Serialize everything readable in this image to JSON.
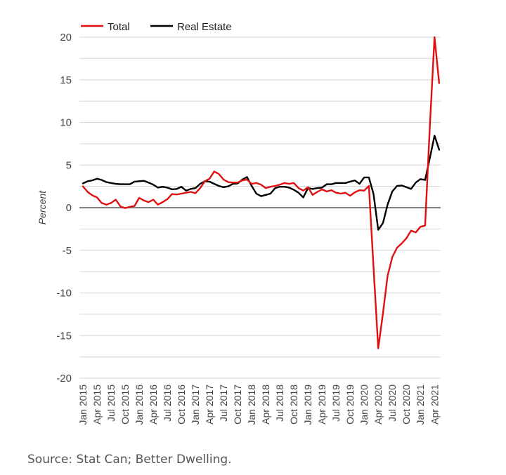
{
  "chart_data": {
    "type": "line",
    "title": "",
    "xlabel": "",
    "ylabel": "Percent",
    "ylim": [
      -20,
      20
    ],
    "y_ticks": [
      20,
      15,
      10,
      5,
      0,
      -5,
      -10,
      -15,
      -20
    ],
    "y_tick_labels": [
      "20",
      "15",
      "10",
      "5",
      "0",
      "-5",
      "-10",
      "-15",
      "-20"
    ],
    "minor_gridlines_every": 2.5,
    "grid": true,
    "legend_position": "top-left",
    "x": [
      "Jan 2015",
      "Feb 2015",
      "Mar 2015",
      "Apr 2015",
      "May 2015",
      "Jun 2015",
      "Jul 2015",
      "Aug 2015",
      "Sep 2015",
      "Oct 2015",
      "Nov 2015",
      "Dec 2015",
      "Jan 2016",
      "Feb 2016",
      "Mar 2016",
      "Apr 2016",
      "May 2016",
      "Jun 2016",
      "Jul 2016",
      "Aug 2016",
      "Sep 2016",
      "Oct 2016",
      "Nov 2016",
      "Dec 2016",
      "Jan 2017",
      "Feb 2017",
      "Mar 2017",
      "Apr 2017",
      "May 2017",
      "Jun 2017",
      "Jul 2017",
      "Aug 2017",
      "Sep 2017",
      "Oct 2017",
      "Nov 2017",
      "Dec 2017",
      "Jan 2018",
      "Feb 2018",
      "Mar 2018",
      "Apr 2018",
      "May 2018",
      "Jun 2018",
      "Jul 2018",
      "Aug 2018",
      "Sep 2018",
      "Oct 2018",
      "Nov 2018",
      "Dec 2018",
      "Jan 2019",
      "Feb 2019",
      "Mar 2019",
      "Apr 2019",
      "May 2019",
      "Jun 2019",
      "Jul 2019",
      "Aug 2019",
      "Sep 2019",
      "Oct 2019",
      "Nov 2019",
      "Dec 2019",
      "Jan 2020",
      "Feb 2020",
      "Mar 2020",
      "Apr 2020",
      "May 2020",
      "Jun 2020",
      "Jul 2020",
      "Aug 2020",
      "Sep 2020",
      "Oct 2020",
      "Nov 2020",
      "Dec 2020",
      "Jan 2021",
      "Feb 2021",
      "Mar 2021",
      "Apr 2021",
      "May 2021"
    ],
    "x_tick_labels": [
      "Jan 2015",
      "Apr 2015",
      "Jul 2015",
      "Oct 2015",
      "Jan 2016",
      "Apr 2016",
      "Jul 2016",
      "Oct 2016",
      "Jan 2017",
      "Apr 2017",
      "Jul 2017",
      "Oct 2017",
      "Jan 2018",
      "Apr 2018",
      "Jul 2018",
      "Oct 2018",
      "Jan 2019",
      "Apr 2019",
      "Jul 2019",
      "Oct 2019",
      "Jan 2020",
      "Apr 2020",
      "Jul 2020",
      "Oct 2020",
      "Jan 2021",
      "Apr 2021"
    ],
    "series": [
      {
        "name": "Total",
        "color": "#e01010",
        "values": [
          2.5,
          1.85,
          1.45,
          1.2,
          0.55,
          0.35,
          0.55,
          0.95,
          0.15,
          -0.05,
          0.1,
          0.2,
          1.15,
          0.85,
          0.65,
          0.95,
          0.35,
          0.65,
          1.0,
          1.6,
          1.55,
          1.65,
          1.75,
          1.85,
          1.7,
          2.3,
          3.1,
          3.4,
          4.25,
          3.95,
          3.3,
          3.0,
          2.95,
          2.95,
          3.2,
          3.3,
          2.8,
          2.9,
          2.7,
          2.3,
          2.45,
          2.55,
          2.7,
          2.9,
          2.8,
          2.9,
          2.3,
          2.0,
          2.4,
          1.5,
          1.85,
          2.15,
          1.9,
          2.05,
          1.75,
          1.65,
          1.75,
          1.4,
          1.8,
          2.05,
          2.0,
          2.55,
          -7.0,
          -16.5,
          -12.4,
          -8.0,
          -5.8,
          -4.7,
          -4.2,
          -3.6,
          -2.7,
          -2.9,
          -2.25,
          -2.1,
          9.5,
          20.0,
          14.6
        ]
      },
      {
        "name": "Real Estate",
        "color": "#000000",
        "values": [
          2.85,
          3.1,
          3.2,
          3.4,
          3.25,
          3.0,
          2.9,
          2.8,
          2.75,
          2.75,
          2.75,
          3.05,
          3.1,
          3.15,
          2.95,
          2.7,
          2.35,
          2.45,
          2.35,
          2.15,
          2.2,
          2.45,
          2.0,
          2.2,
          2.3,
          2.8,
          3.1,
          3.05,
          2.8,
          2.55,
          2.4,
          2.5,
          2.8,
          2.85,
          3.3,
          3.6,
          2.55,
          1.65,
          1.35,
          1.5,
          1.65,
          2.3,
          2.45,
          2.45,
          2.35,
          2.1,
          1.75,
          1.2,
          2.3,
          2.2,
          2.3,
          2.35,
          2.75,
          2.75,
          2.9,
          2.9,
          2.9,
          3.05,
          3.2,
          2.8,
          3.55,
          3.55,
          1.6,
          -2.6,
          -1.8,
          0.35,
          1.9,
          2.55,
          2.6,
          2.4,
          2.2,
          2.95,
          3.35,
          3.25,
          5.8,
          8.45,
          6.8
        ]
      }
    ]
  },
  "source_note": "Source: Stat Can; Better Dwelling."
}
